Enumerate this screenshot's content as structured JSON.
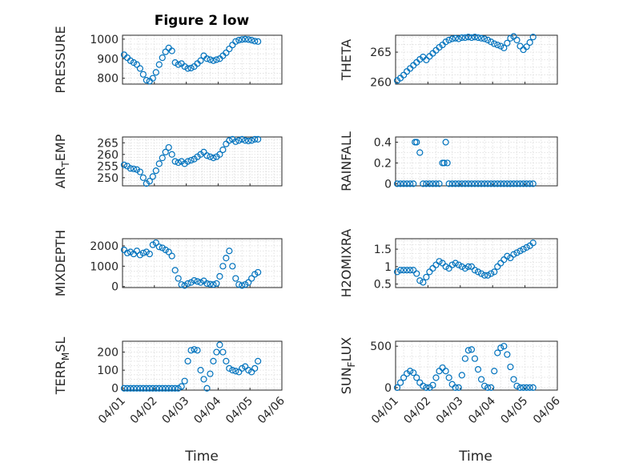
{
  "figure": {
    "title": "Figure 2 low",
    "xlabel": "Time"
  },
  "colors": {
    "marker": "#0072bd",
    "axis": "#262626",
    "grid": "#dcdcdc"
  },
  "chart_data": [
    {
      "type": "scatter",
      "ylabel": "PRESSURE",
      "title": "Figure 2 low",
      "xlim": [
        0,
        5
      ],
      "ylim": [
        770,
        1020
      ],
      "yticks": [
        800,
        900,
        1000
      ],
      "x": [
        0.05,
        0.15,
        0.25,
        0.35,
        0.45,
        0.55,
        0.65,
        0.75,
        0.85,
        0.95,
        1.05,
        1.15,
        1.25,
        1.35,
        1.45,
        1.55,
        1.65,
        1.75,
        1.85,
        1.95,
        2.05,
        2.15,
        2.25,
        2.35,
        2.45,
        2.55,
        2.65,
        2.75,
        2.85,
        2.95,
        3.05,
        3.15,
        3.25,
        3.35,
        3.45,
        3.55,
        3.65,
        3.75,
        3.85,
        3.95,
        4.05,
        4.15,
        4.25
      ],
      "y": [
        920,
        905,
        890,
        880,
        870,
        850,
        820,
        790,
        785,
        800,
        830,
        870,
        905,
        935,
        955,
        940,
        880,
        870,
        875,
        860,
        850,
        852,
        860,
        875,
        890,
        915,
        900,
        895,
        890,
        895,
        900,
        915,
        930,
        950,
        970,
        988,
        995,
        998,
        1000,
        998,
        995,
        990,
        988
      ]
    },
    {
      "type": "scatter",
      "ylabel": "THETA",
      "xlim": [
        0,
        5
      ],
      "ylim": [
        259.7,
        267.8
      ],
      "yticks": [
        260,
        265
      ],
      "x": [
        0.05,
        0.15,
        0.25,
        0.35,
        0.45,
        0.55,
        0.65,
        0.75,
        0.85,
        0.95,
        1.05,
        1.15,
        1.25,
        1.35,
        1.45,
        1.55,
        1.65,
        1.75,
        1.85,
        1.95,
        2.05,
        2.15,
        2.25,
        2.35,
        2.45,
        2.55,
        2.65,
        2.75,
        2.85,
        2.95,
        3.05,
        3.15,
        3.25,
        3.35,
        3.45,
        3.55,
        3.65,
        3.75,
        3.85,
        3.95,
        4.05,
        4.15,
        4.25
      ],
      "y": [
        260.3,
        260.7,
        261.2,
        261.8,
        262.3,
        262.8,
        263.3,
        263.8,
        264.2,
        263.7,
        264.3,
        264.8,
        265.3,
        265.8,
        266.2,
        266.7,
        267.0,
        267.2,
        267.3,
        267.2,
        267.4,
        267.4,
        267.5,
        267.4,
        267.5,
        267.4,
        267.3,
        267.2,
        267.0,
        266.7,
        266.4,
        266.2,
        266.0,
        265.7,
        266.5,
        267.3,
        267.6,
        267.0,
        266.0,
        265.4,
        265.9,
        266.6,
        267.5
      ]
    },
    {
      "type": "scatter",
      "ylabel": "AIR_TEMP",
      "ylabel_main": "AIR",
      "ylabel_sub": "T",
      "ylabel_rest": "EMP",
      "xlim": [
        0,
        5
      ],
      "ylim": [
        246.5,
        267.5
      ],
      "yticks": [
        250,
        255,
        260,
        265
      ],
      "x": [
        0.05,
        0.15,
        0.25,
        0.35,
        0.45,
        0.55,
        0.65,
        0.75,
        0.85,
        0.95,
        1.05,
        1.15,
        1.25,
        1.35,
        1.45,
        1.55,
        1.65,
        1.75,
        1.85,
        1.95,
        2.05,
        2.15,
        2.25,
        2.35,
        2.45,
        2.55,
        2.65,
        2.75,
        2.85,
        2.95,
        3.05,
        3.15,
        3.25,
        3.35,
        3.45,
        3.55,
        3.65,
        3.75,
        3.85,
        3.95,
        4.05,
        4.15,
        4.25
      ],
      "y": [
        255.5,
        255.0,
        254.0,
        253.8,
        253.5,
        252.5,
        250.0,
        247.5,
        248.5,
        250.5,
        253.0,
        256.0,
        258.5,
        261.0,
        263.0,
        260.0,
        257.0,
        256.5,
        257.0,
        256.0,
        257.0,
        257.5,
        258.0,
        259.0,
        260.0,
        261.0,
        259.5,
        259.0,
        258.5,
        259.0,
        260.0,
        262.0,
        264.5,
        266.0,
        266.5,
        265.5,
        266.0,
        266.5,
        266.0,
        265.8,
        266.0,
        266.5,
        266.5
      ]
    },
    {
      "type": "scatter",
      "ylabel": "RAINFALL",
      "xlim": [
        0,
        5
      ],
      "ylim": [
        -0.02,
        0.45
      ],
      "yticks": [
        0,
        0.2,
        0.4
      ],
      "x": [
        0.05,
        0.15,
        0.25,
        0.35,
        0.45,
        0.55,
        0.6,
        0.65,
        0.75,
        0.85,
        0.95,
        1.05,
        1.15,
        1.25,
        1.35,
        1.45,
        1.5,
        1.55,
        1.6,
        1.65,
        1.75,
        1.85,
        1.95,
        2.05,
        2.15,
        2.25,
        2.35,
        2.45,
        2.55,
        2.65,
        2.75,
        2.85,
        2.95,
        3.05,
        3.15,
        3.25,
        3.35,
        3.45,
        3.55,
        3.65,
        3.75,
        3.85,
        3.95,
        4.05,
        4.15,
        4.25
      ],
      "y": [
        0,
        0,
        0,
        0,
        0,
        0,
        0.4,
        0.4,
        0.3,
        0,
        0,
        0,
        0,
        0,
        0,
        0.2,
        0.2,
        0.4,
        0.2,
        0,
        0,
        0,
        0,
        0,
        0,
        0,
        0,
        0,
        0,
        0,
        0,
        0,
        0,
        0,
        0,
        0,
        0,
        0,
        0,
        0,
        0,
        0,
        0,
        0,
        0,
        0
      ]
    },
    {
      "type": "scatter",
      "ylabel": "MIXDEPTH",
      "xlim": [
        0,
        5
      ],
      "ylim": [
        -50,
        2350
      ],
      "yticks": [
        0,
        1000,
        2000
      ],
      "x": [
        0.05,
        0.15,
        0.25,
        0.35,
        0.45,
        0.55,
        0.65,
        0.75,
        0.85,
        0.95,
        1.05,
        1.15,
        1.25,
        1.35,
        1.45,
        1.55,
        1.65,
        1.75,
        1.85,
        1.95,
        2.05,
        2.15,
        2.25,
        2.35,
        2.45,
        2.55,
        2.65,
        2.75,
        2.85,
        2.95,
        3.05,
        3.15,
        3.25,
        3.35,
        3.45,
        3.55,
        3.65,
        3.75,
        3.85,
        3.95,
        4.05,
        4.15,
        4.25
      ],
      "y": [
        1800,
        1650,
        1700,
        1600,
        1750,
        1550,
        1650,
        1700,
        1600,
        2050,
        2150,
        1950,
        1900,
        1800,
        1700,
        1500,
        800,
        400,
        100,
        50,
        150,
        200,
        300,
        250,
        200,
        280,
        150,
        120,
        100,
        150,
        500,
        1000,
        1400,
        1750,
        1000,
        400,
        100,
        50,
        100,
        200,
        400,
        600,
        700
      ]
    },
    {
      "type": "scatter",
      "ylabel": "H2OMIXRA",
      "xlim": [
        0,
        5
      ],
      "ylim": [
        0.4,
        1.8
      ],
      "yticks": [
        0.5,
        1,
        1.5
      ],
      "x": [
        0.05,
        0.15,
        0.25,
        0.35,
        0.45,
        0.55,
        0.65,
        0.75,
        0.85,
        0.95,
        1.05,
        1.15,
        1.25,
        1.35,
        1.45,
        1.55,
        1.65,
        1.75,
        1.85,
        1.95,
        2.05,
        2.15,
        2.25,
        2.35,
        2.45,
        2.55,
        2.65,
        2.75,
        2.85,
        2.95,
        3.05,
        3.15,
        3.25,
        3.35,
        3.45,
        3.55,
        3.65,
        3.75,
        3.85,
        3.95,
        4.05,
        4.15,
        4.25
      ],
      "y": [
        0.85,
        0.9,
        0.9,
        0.9,
        0.9,
        0.9,
        0.8,
        0.6,
        0.55,
        0.7,
        0.85,
        0.95,
        1.05,
        1.15,
        1.1,
        1.0,
        0.95,
        1.05,
        1.1,
        1.05,
        1.0,
        0.95,
        1.0,
        1.0,
        0.9,
        0.85,
        0.8,
        0.75,
        0.75,
        0.8,
        0.85,
        1.0,
        1.1,
        1.2,
        1.3,
        1.25,
        1.35,
        1.4,
        1.45,
        1.5,
        1.55,
        1.6,
        1.68
      ]
    },
    {
      "type": "scatter",
      "ylabel": "TERR_MSL",
      "ylabel_main": "TERR",
      "ylabel_sub": "M",
      "ylabel_rest": "SL",
      "xlim": [
        0,
        5
      ],
      "ylim": [
        -10,
        260
      ],
      "yticks": [
        0,
        100,
        200
      ],
      "x": [
        0.05,
        0.15,
        0.25,
        0.35,
        0.45,
        0.55,
        0.65,
        0.75,
        0.85,
        0.95,
        1.05,
        1.15,
        1.25,
        1.35,
        1.45,
        1.55,
        1.65,
        1.75,
        1.85,
        1.95,
        2.05,
        2.15,
        2.25,
        2.35,
        2.45,
        2.55,
        2.65,
        2.75,
        2.85,
        2.95,
        3.05,
        3.15,
        3.25,
        3.35,
        3.45,
        3.55,
        3.65,
        3.75,
        3.85,
        3.95,
        4.05,
        4.15,
        4.25
      ],
      "y": [
        0,
        0,
        0,
        0,
        0,
        0,
        0,
        0,
        0,
        0,
        0,
        0,
        0,
        0,
        0,
        0,
        0,
        0,
        10,
        40,
        150,
        210,
        215,
        210,
        100,
        50,
        0,
        80,
        150,
        200,
        240,
        200,
        150,
        110,
        100,
        95,
        90,
        110,
        120,
        100,
        90,
        110,
        150
      ]
    },
    {
      "type": "scatter",
      "ylabel": "SUN_FLUX",
      "ylabel_main": "SUN",
      "ylabel_sub": "F",
      "ylabel_rest": "LUX",
      "xlim": [
        0,
        5
      ],
      "ylim": [
        -30,
        560
      ],
      "yticks": [
        0,
        500
      ],
      "x": [
        0.05,
        0.15,
        0.25,
        0.35,
        0.45,
        0.55,
        0.65,
        0.75,
        0.85,
        0.95,
        1.05,
        1.15,
        1.25,
        1.35,
        1.45,
        1.55,
        1.65,
        1.75,
        1.85,
        1.95,
        2.05,
        2.15,
        2.25,
        2.35,
        2.45,
        2.55,
        2.65,
        2.75,
        2.85,
        2.95,
        3.05,
        3.15,
        3.25,
        3.35,
        3.45,
        3.55,
        3.65,
        3.75,
        3.85,
        3.95,
        4.05,
        4.15,
        4.25
      ],
      "y": [
        0,
        60,
        120,
        170,
        200,
        180,
        120,
        60,
        20,
        0,
        0,
        30,
        120,
        200,
        240,
        200,
        120,
        40,
        0,
        0,
        150,
        350,
        450,
        460,
        350,
        220,
        100,
        20,
        0,
        0,
        200,
        420,
        480,
        500,
        400,
        250,
        100,
        20,
        0,
        0,
        0,
        0,
        0
      ]
    }
  ],
  "xticks": [
    "04/01",
    "04/02",
    "04/03",
    "04/04",
    "04/05",
    "04/06"
  ]
}
